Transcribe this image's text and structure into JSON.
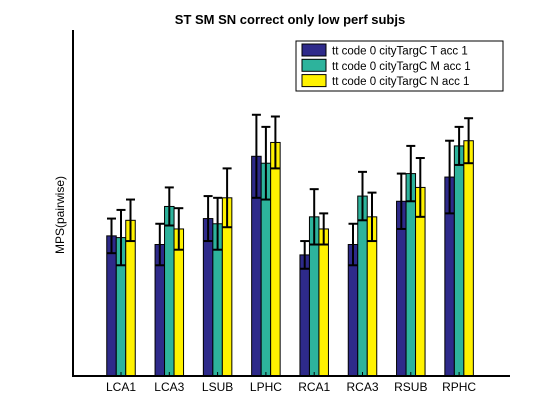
{
  "chart_data": {
    "type": "bar",
    "title": "ST SM SN correct only low perf subjs",
    "xlabel": "",
    "ylabel": "MPS(pairwise)",
    "ylim": [
      0,
      1
    ],
    "yticks_visible": false,
    "grid": false,
    "legend_position": "top-right",
    "categories": [
      "LCA1",
      "LCA3",
      "LSUB",
      "LPHC",
      "RCA1",
      "RCA3",
      "RSUB",
      "RPHC"
    ],
    "series": [
      {
        "name": "tt code 0 cityTargC T acc 1",
        "color": "#2e2a8a",
        "values": [
          0.405,
          0.38,
          0.455,
          0.635,
          0.35,
          0.38,
          0.505,
          0.575
        ],
        "errors": [
          0.05,
          0.06,
          0.065,
          0.12,
          0.04,
          0.06,
          0.08,
          0.105
        ]
      },
      {
        "name": "tt code 0 cityTargC M acc 1",
        "color": "#2db39c",
        "values": [
          0.4,
          0.49,
          0.44,
          0.615,
          0.46,
          0.52,
          0.585,
          0.665
        ],
        "errors": [
          0.08,
          0.055,
          0.075,
          0.105,
          0.08,
          0.07,
          0.08,
          0.055
        ]
      },
      {
        "name": "tt code 0 cityTargC N acc 1",
        "color": "#fff200",
        "values": [
          0.45,
          0.425,
          0.515,
          0.675,
          0.425,
          0.46,
          0.545,
          0.68
        ],
        "errors": [
          0.06,
          0.06,
          0.085,
          0.075,
          0.045,
          0.07,
          0.085,
          0.065
        ]
      }
    ]
  }
}
